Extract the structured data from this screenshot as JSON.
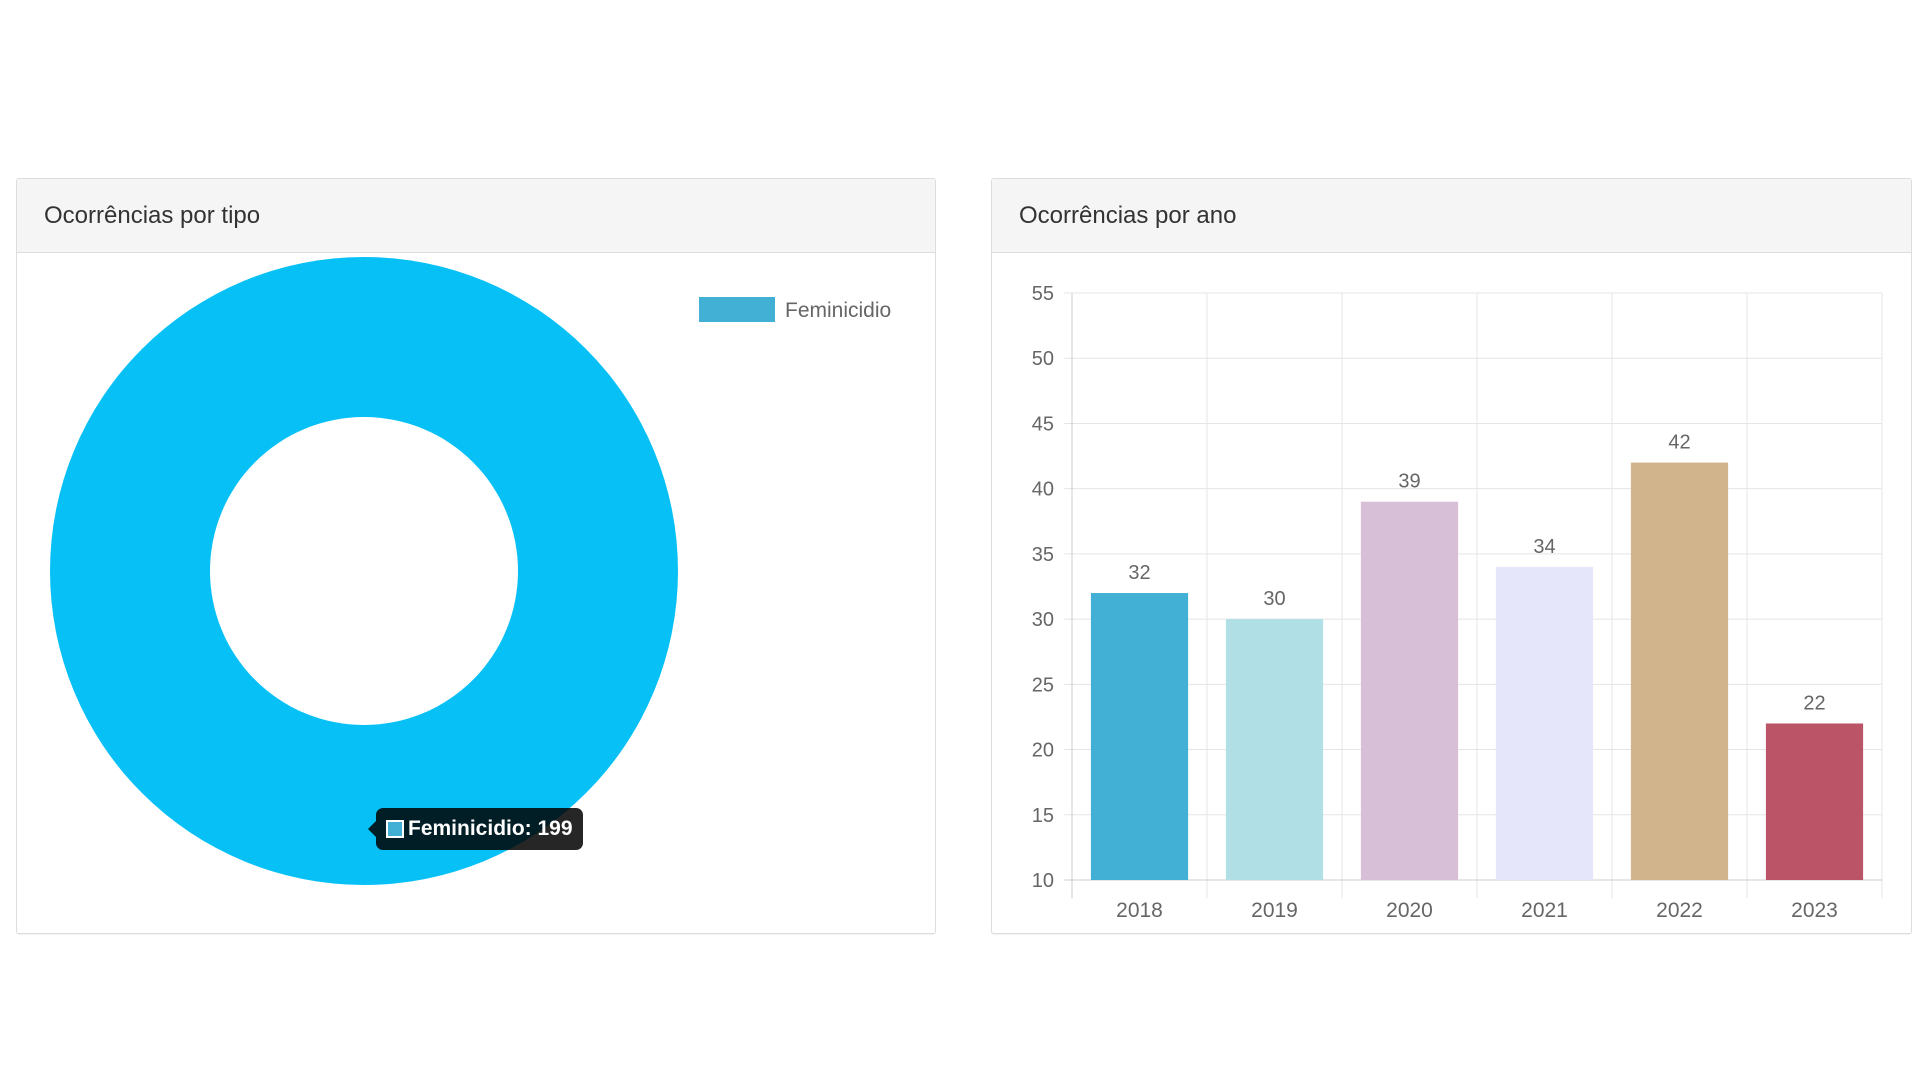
{
  "panels": {
    "left": {
      "title": "Ocorrências por tipo"
    },
    "right": {
      "title": "Ocorrências por ano"
    }
  },
  "tooltip": {
    "label": "Feminicidio: 199",
    "swatch_color": "#42b0d5"
  },
  "chart_data": [
    {
      "type": "pie",
      "variant": "doughnut",
      "title": "Ocorrências por tipo",
      "labels": [
        "Feminicidio"
      ],
      "values": [
        199
      ],
      "colors": [
        "#07c1f6"
      ],
      "legend": {
        "position": "top-right",
        "entries": [
          {
            "label": "Feminicidio",
            "color": "#42b0d5"
          }
        ]
      }
    },
    {
      "type": "bar",
      "title": "Ocorrências por ano",
      "categories": [
        "2018",
        "2019",
        "2020",
        "2021",
        "2022",
        "2023"
      ],
      "values": [
        32,
        30,
        39,
        34,
        42,
        22
      ],
      "colors": [
        "#42b0d5",
        "#b0e0e6",
        "#d8bfd8",
        "#e6e6fa",
        "#d2b48c",
        "#bc5468"
      ],
      "ylim": [
        10,
        55
      ],
      "yticks": [
        10,
        15,
        20,
        25,
        30,
        35,
        40,
        45,
        50,
        55
      ],
      "data_labels": true,
      "grid": true,
      "xlabel": "",
      "ylabel": ""
    }
  ]
}
